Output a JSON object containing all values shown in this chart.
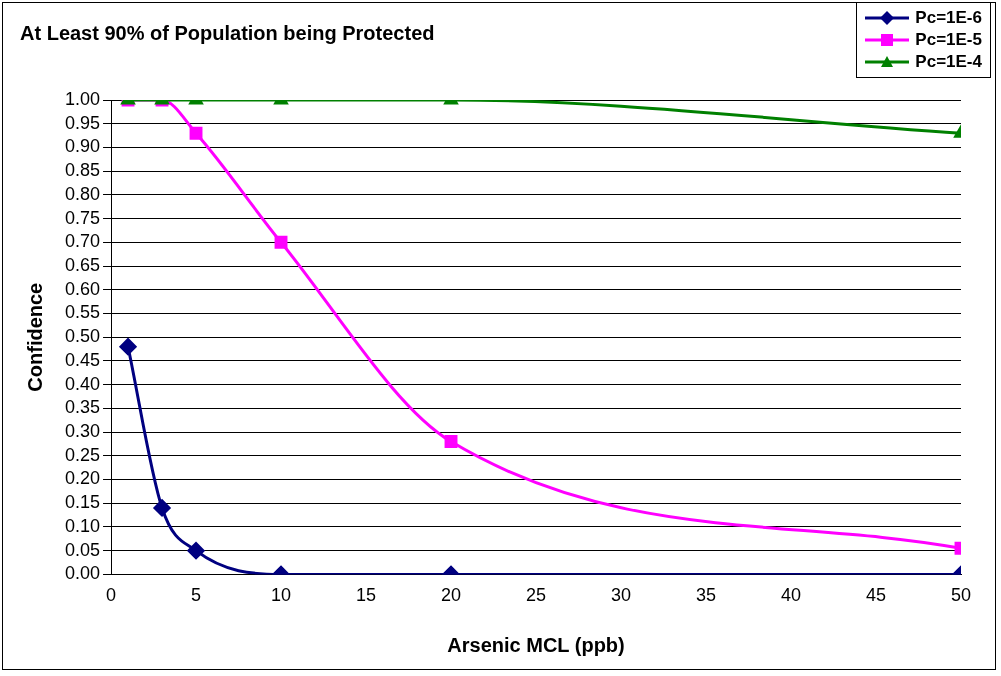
{
  "chart_data": {
    "type": "line",
    "title": "At Least 90% of Population being Protected",
    "xlabel": "Arsenic MCL (ppb)",
    "ylabel": "Confidence",
    "x": [
      1,
      3,
      5,
      10,
      20,
      50
    ],
    "series": [
      {
        "name": "Pc=1E-6",
        "color": "#000080",
        "marker": "diamond",
        "values": [
          0.48,
          0.14,
          0.05,
          0.0,
          0.0,
          0.0
        ]
      },
      {
        "name": "Pc=1E-5",
        "color": "#ff00ff",
        "marker": "square",
        "values": [
          1.0,
          1.0,
          0.93,
          0.7,
          0.28,
          0.055
        ]
      },
      {
        "name": "Pc=1E-4",
        "color": "#008000",
        "marker": "triangle",
        "values": [
          1.0,
          1.0,
          1.0,
          1.0,
          1.0,
          0.93
        ]
      }
    ],
    "xlim": [
      0,
      50
    ],
    "xticks": [
      0,
      5,
      10,
      15,
      20,
      25,
      30,
      35,
      40,
      45,
      50
    ],
    "ylim": [
      0,
      1
    ],
    "yticks": [
      {
        "value": 0,
        "label": "0.00"
      },
      {
        "value": 0.05,
        "label": "0.05"
      },
      {
        "value": 0.1,
        "label": "0.10"
      },
      {
        "value": 0.15,
        "label": "0.15"
      },
      {
        "value": 0.2,
        "label": "0.20"
      },
      {
        "value": 0.25,
        "label": "0.25"
      },
      {
        "value": 0.3,
        "label": "0.30"
      },
      {
        "value": 0.35,
        "label": "0.35"
      },
      {
        "value": 0.4,
        "label": "0.40"
      },
      {
        "value": 0.45,
        "label": "0.45"
      },
      {
        "value": 0.5,
        "label": "0.50"
      },
      {
        "value": 0.55,
        "label": "0.55"
      },
      {
        "value": 0.6,
        "label": "0.60"
      },
      {
        "value": 0.65,
        "label": "0.65"
      },
      {
        "value": 0.7,
        "label": "0.70"
      },
      {
        "value": 0.75,
        "label": "0.75"
      },
      {
        "value": 0.8,
        "label": "0.80"
      },
      {
        "value": 0.85,
        "label": "0.85"
      },
      {
        "value": 0.9,
        "label": "0.90"
      },
      {
        "value": 0.95,
        "label": "0.95"
      },
      {
        "value": 1,
        "label": "1.00"
      }
    ],
    "grid": "y",
    "legend": "top right",
    "line_style": "solid"
  }
}
